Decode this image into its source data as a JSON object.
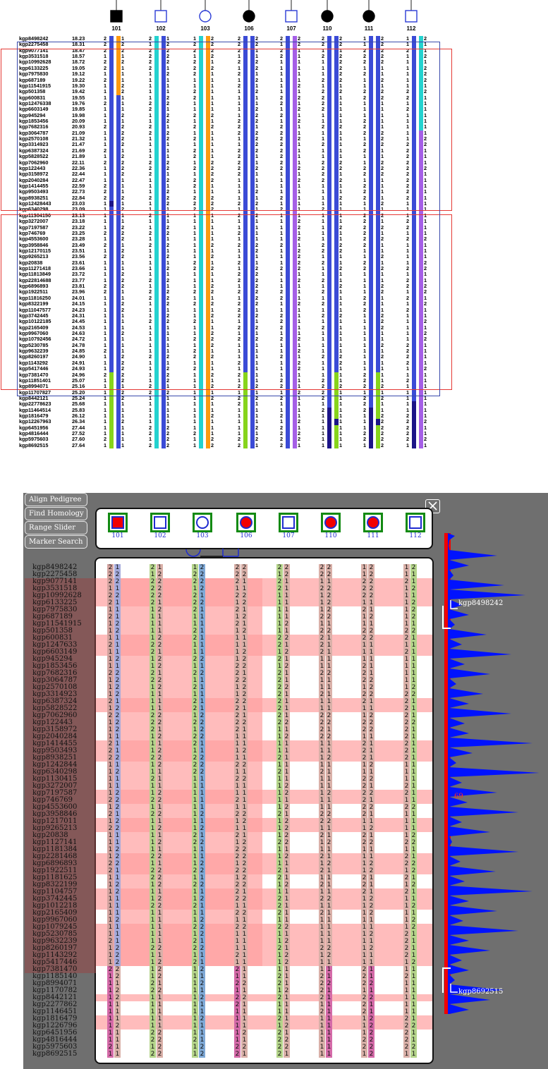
{
  "top": {
    "individuals": [
      {
        "id": "101",
        "shape": "square",
        "filled": true
      },
      {
        "id": "102",
        "shape": "square",
        "filled": false
      },
      {
        "id": "103",
        "shape": "circle",
        "filled": false
      },
      {
        "id": "106",
        "shape": "circle",
        "filled": true
      },
      {
        "id": "107",
        "shape": "square",
        "filled": false
      },
      {
        "id": "110",
        "shape": "circle",
        "filled": true
      },
      {
        "id": "111",
        "shape": "circle",
        "filled": true
      },
      {
        "id": "112",
        "shape": "square",
        "filled": false
      }
    ],
    "markers": [
      [
        "kgp8498242",
        "18.23"
      ],
      [
        "kgp2275458",
        "18.31"
      ],
      [
        "kgp9077141",
        "18.47"
      ],
      [
        "kgp3531518",
        "18.57"
      ],
      [
        "kgp10992628",
        "18.72"
      ],
      [
        "kgp6133225",
        "19.05"
      ],
      [
        "kgp7975830",
        "19.12"
      ],
      [
        "kgp687189",
        "19.22"
      ],
      [
        "kgp11541915",
        "19.30"
      ],
      [
        "kgp501358",
        "19.42"
      ],
      [
        "kgp600831",
        "19.55"
      ],
      [
        "kgp12476338",
        "19.76"
      ],
      [
        "kgp6603149",
        "19.85"
      ],
      [
        "kgp945294",
        "19.98"
      ],
      [
        "kgp1853456",
        "20.09"
      ],
      [
        "kgp7682316",
        "20.93"
      ],
      [
        "kgp3064787",
        "21.09"
      ],
      [
        "kgp2570108",
        "21.32"
      ],
      [
        "kgp3314923",
        "21.47"
      ],
      [
        "kgp6387324",
        "21.69"
      ],
      [
        "kgp5828522",
        "21.89"
      ],
      [
        "kgp7062960",
        "22.11"
      ],
      [
        "kgp122443",
        "22.36"
      ],
      [
        "kgp3158972",
        "22.44"
      ],
      [
        "kgp2040284",
        "22.47"
      ],
      [
        "kgp1414455",
        "22.59"
      ],
      [
        "kgp9503493",
        "22.73"
      ],
      [
        "kgp8938251",
        "22.84"
      ],
      [
        "kgp12428443",
        "23.03"
      ],
      [
        "kgp6340298",
        "23.09"
      ],
      [
        "kgp11304150",
        "23.13"
      ],
      [
        "kgp3272007",
        "23.18"
      ],
      [
        "kgp7197587",
        "23.22"
      ],
      [
        "kgp746769",
        "23.25"
      ],
      [
        "kgp4553600",
        "23.28"
      ],
      [
        "kgp3958846",
        "23.49"
      ],
      [
        "kgp12170115",
        "23.51"
      ],
      [
        "kgp9265213",
        "23.56"
      ],
      [
        "kgp20838",
        "23.61"
      ],
      [
        "kgp11271418",
        "23.66"
      ],
      [
        "kgp11813849",
        "23.72"
      ],
      [
        "kgp22814688",
        "23.77"
      ],
      [
        "kgp6896893",
        "23.81"
      ],
      [
        "kgp1922511",
        "23.96"
      ],
      [
        "kgp11816250",
        "24.01"
      ],
      [
        "kgp8322199",
        "24.15"
      ],
      [
        "kgp11047577",
        "24.23"
      ],
      [
        "kgp3742445",
        "24.31"
      ],
      [
        "kgp10122185",
        "24.45"
      ],
      [
        "kgp2165409",
        "24.53"
      ],
      [
        "kgp9967060",
        "24.63"
      ],
      [
        "kgp10792456",
        "24.72"
      ],
      [
        "kgp5230785",
        "24.78"
      ],
      [
        "kgp9632239",
        "24.85"
      ],
      [
        "kgp8260197",
        "24.90"
      ],
      [
        "kgp1143292",
        "24.91"
      ],
      [
        "kgp5417446",
        "24.93"
      ],
      [
        "kgp7381470",
        "24.96"
      ],
      [
        "kgp11851401",
        "25.07"
      ],
      [
        "kgp8994071",
        "25.16"
      ],
      [
        "kgp11707827",
        "25.20"
      ],
      [
        "kgp8442121",
        "25.24"
      ],
      [
        "kgp22778623",
        "25.68"
      ],
      [
        "kgp11464514",
        "25.83"
      ],
      [
        "kgp1816479",
        "26.12"
      ],
      [
        "kgp12267963",
        "26.34"
      ],
      [
        "kgp6451956",
        "27.44"
      ],
      [
        "kgp4816444",
        "27.52"
      ],
      [
        "kgp5975603",
        "27.60"
      ],
      [
        "kgp8692515",
        "27.64"
      ]
    ],
    "colors": {
      "blue": "#3b4bd6",
      "orange": "#ff9a0f",
      "cyan": "#24d2cf",
      "violet": "#a55fe6",
      "lime": "#87d41b",
      "navy": "#1c1487",
      "red": "#e53935"
    }
  },
  "tools": {
    "align_pedigree": "Align Pedigree",
    "find_homology": "Find Homology",
    "range_slider": "Range Slider",
    "marker_search": "Marker Search"
  },
  "panel": {
    "individuals": [
      "101",
      "102",
      "103",
      "106",
      "107",
      "110",
      "111",
      "112"
    ],
    "marker_names": [
      "kgp8498242",
      "kgp2275458",
      "kgp9077141",
      "kgp3531518",
      "kgp10992628",
      "kgp6133225",
      "kgp7975830",
      "kgp687189",
      "kgp11541915",
      "kgp501358",
      "kgp600831",
      "kgp1247633",
      "kgp6603149",
      "kgp945294",
      "kgp1853456",
      "kgp7682316",
      "kgp3064787",
      "kgp2570108",
      "kgp3314923",
      "kgp6387324",
      "kgp5828522",
      "kgp7062960",
      "kgp122443",
      "kgp3158972",
      "kgp2040284",
      "kgp1414455",
      "kgp9503493",
      "kgp8938251",
      "kgp1242844",
      "kgp6340298",
      "kgp1130415",
      "kgp3272007",
      "kgp7197587",
      "kgp746769",
      "kgp4553600",
      "kgp3958846",
      "kgp1217011",
      "kgp9265213",
      "kgp20838",
      "kgp1127141",
      "kgp1181384",
      "kgp2281468",
      "kgp6896893",
      "kgp1922511",
      "kgp1181625",
      "kgp8322199",
      "kgp1104757",
      "kgp3742445",
      "kgp1012218",
      "kgp2165409",
      "kgp9967060",
      "kgp1079245",
      "kgp5230785",
      "kgp9632239",
      "kgp8260197",
      "kgp1143292",
      "kgp5417446",
      "kgp7381470",
      "kgp1185140",
      "kgp8994071",
      "kgp1170782",
      "kgp8442121",
      "kgp2277862",
      "kgp1146451",
      "kgp1816479",
      "kgp1226796",
      "kgp6451956",
      "kgp4816444",
      "kgp5975603",
      "kgp8692515"
    ],
    "alleles": "2121122222221212221222221222121122222221211122211122121121222212222221221112221121212212111211121112212111122112211111121122121212111121121111111211211211222222111221112221222121221111212111111121111212211121121222122111111111121122121121112221222121222111122211222111221112122112221112121211111221212222211121222111212112112121211111212222122121221221122222222222222212211221112122211112221112221121211121111111212121121112111121212222221121122121111222221111121112112211212111111121112211112211111111111211212112121111121222212222112111112111121111111211222221221222212221111211111212221111221212111211121111112121122121121112221222122222121111221111111112221122122111212211121211121222212222222121121211221112211121211212222212212112121111211111212111121222212212111122211121111212111111222121121112111211111111121111222222111112111112111111122121112111121111211222221121221221121111211212112112122111121111122212122111112111121211112121212111211222212222111222111112211111121112222121221111111121111121111111111111212111111112112111122112111111121112221122111221111221112221112211222121121222221122221122122121111211221121122211222212122221222222222111212212111222221122122212122121111211221221221221122222112221122121112121211221111122111111221111112121211111221212121211212212111211121212211111211111111111221112221121222112221211222212222121212212211221221221221212222112222211221121212121212222111111112211121222121121212111111212222221222112211111111111121222211212221221112122221111121212222122211122212221122222",
    "chr_label": "69",
    "flag_top": "kgp8498242",
    "flag_bottom": "kgp8692515"
  }
}
